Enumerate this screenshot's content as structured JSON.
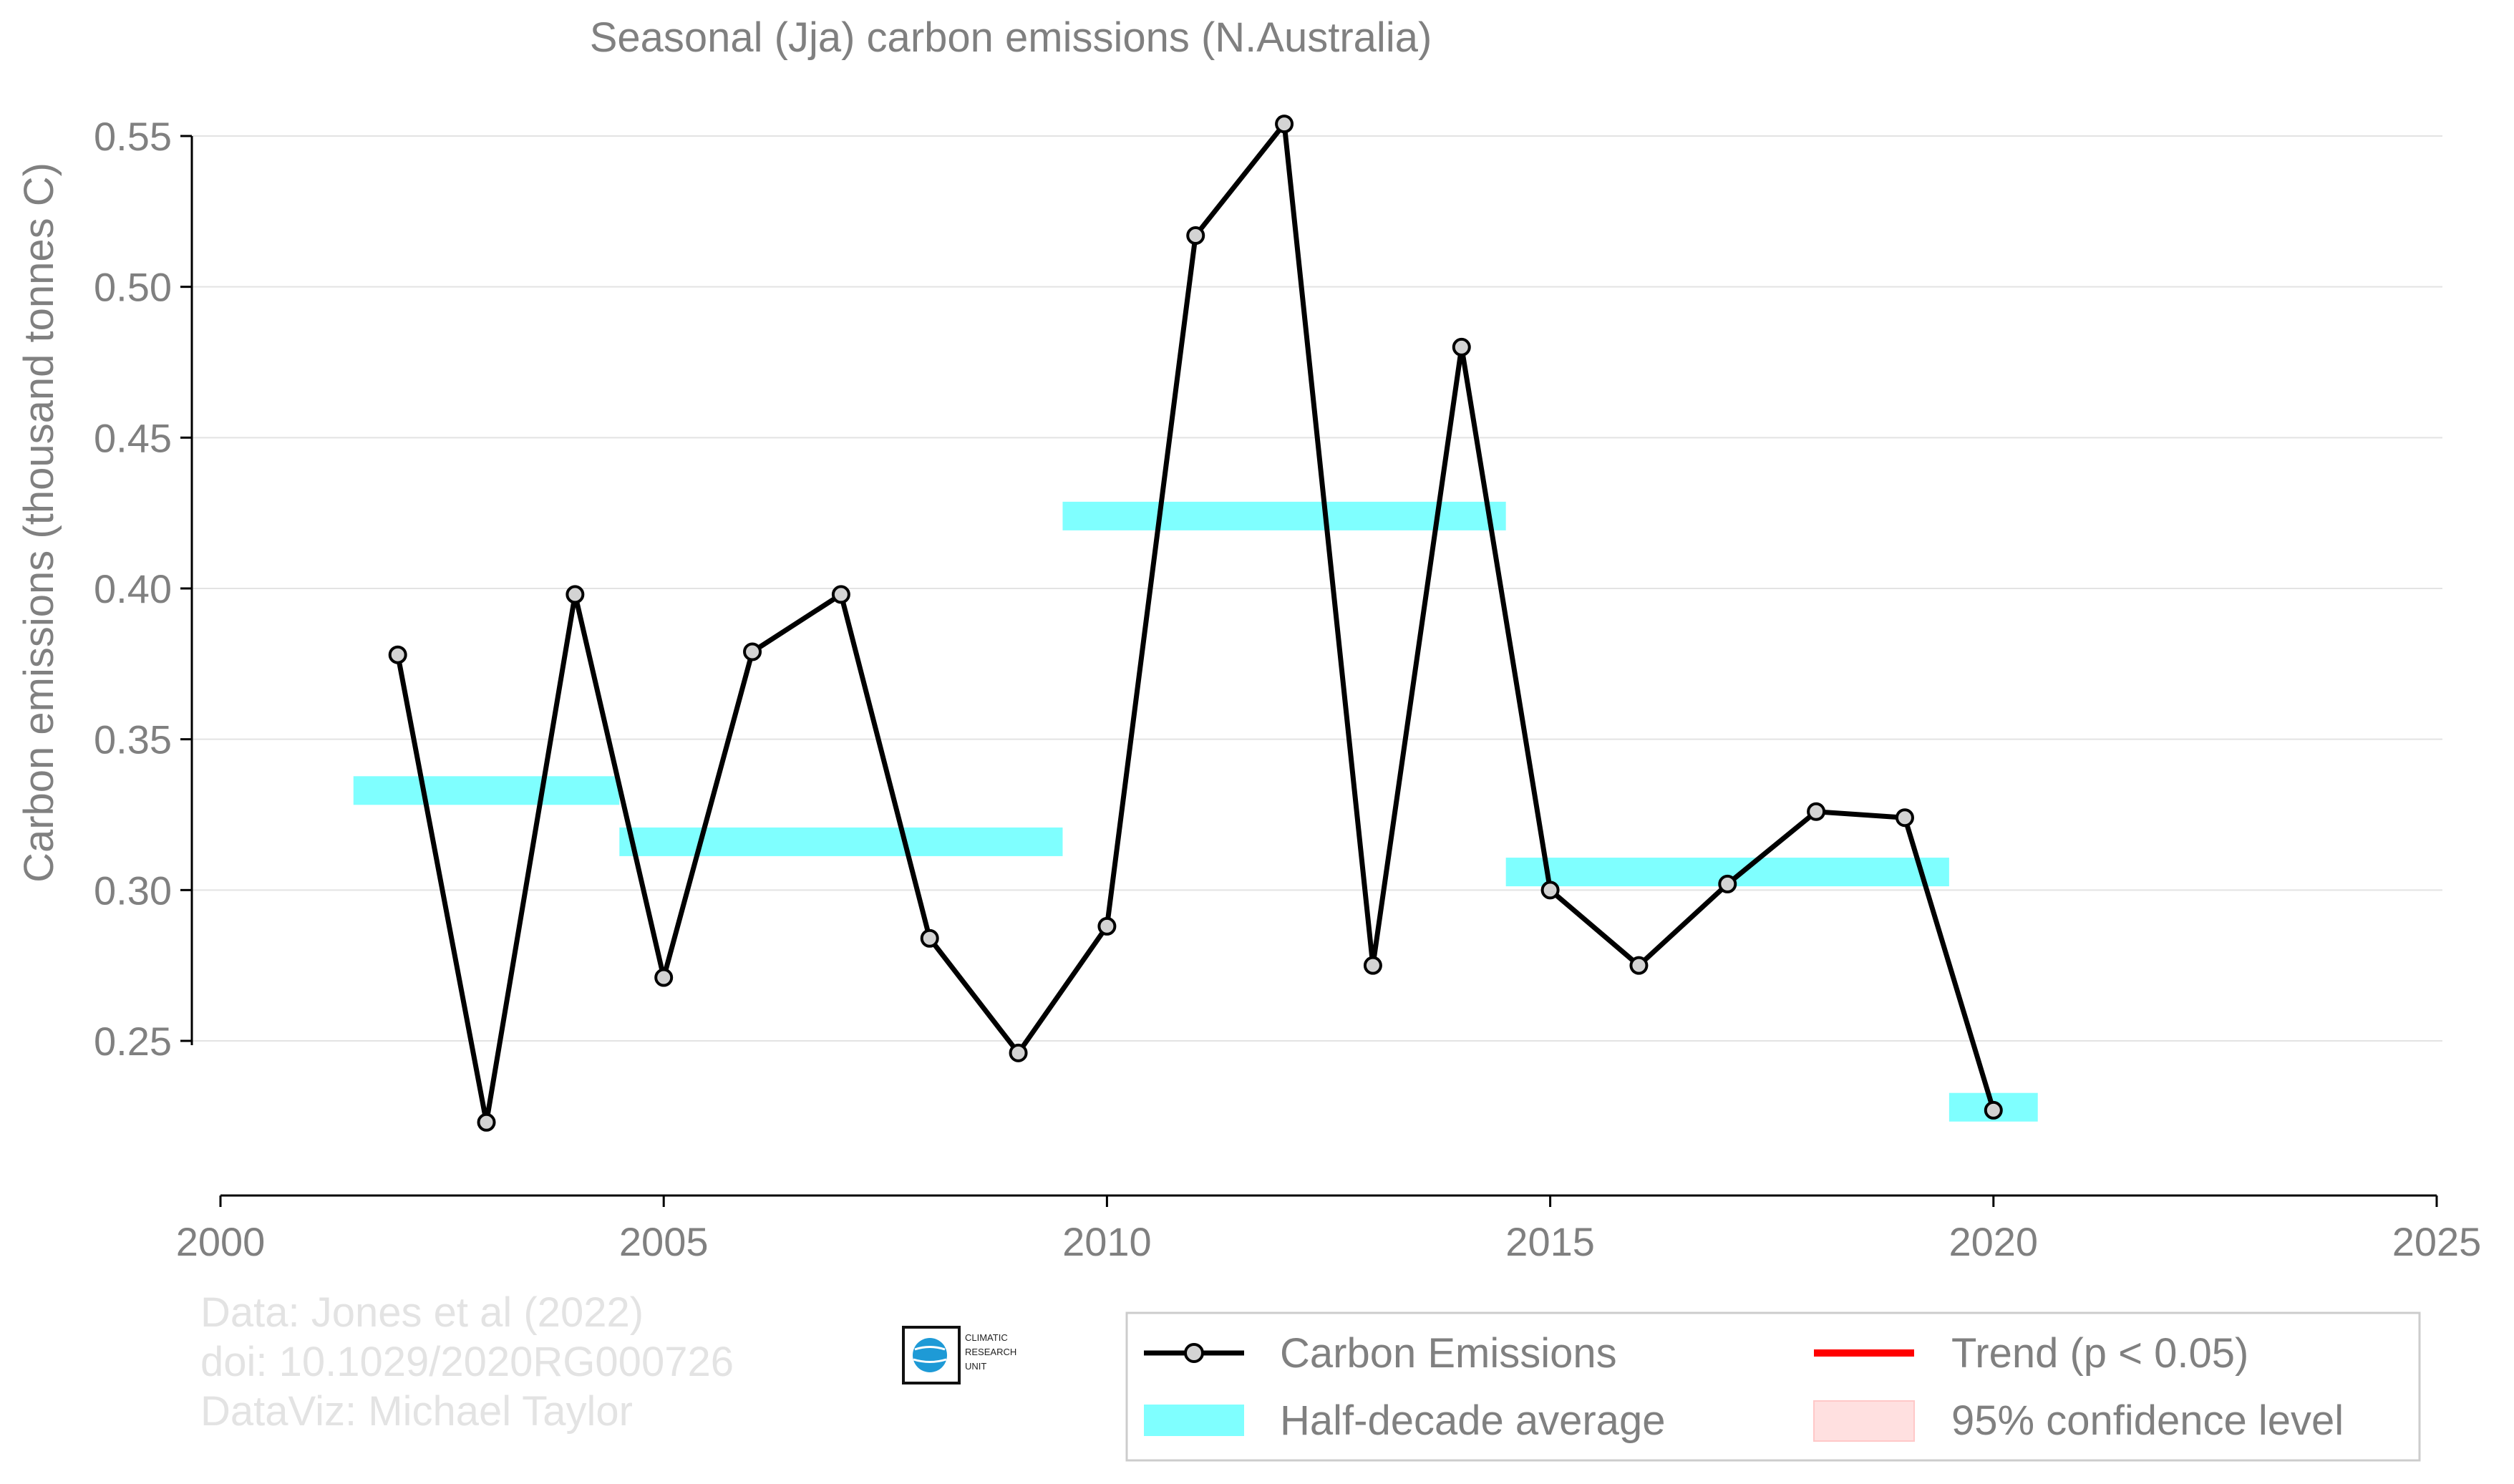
{
  "chart_data": {
    "type": "line",
    "title": "Seasonal (Jja) carbon emissions (N.Australia)",
    "xlabel": "",
    "ylabel": "Carbon emissions (thousand tonnes C)",
    "xlim": [
      2000,
      2025
    ],
    "ylim": [
      0.195,
      0.555
    ],
    "x_ticks": [
      2000,
      2005,
      2010,
      2015,
      2020,
      2025
    ],
    "x_tick_labels": [
      "2000",
      "2005",
      "2010",
      "2015",
      "2020",
      "2025"
    ],
    "y_ticks": [
      0.25,
      0.3,
      0.35,
      0.4,
      0.45,
      0.5,
      0.55
    ],
    "y_tick_labels": [
      "0.25",
      "0.30",
      "0.35",
      "0.40",
      "0.45",
      "0.50",
      "0.55"
    ],
    "grid": "horizontal",
    "legend_position": "bottom-right",
    "series": [
      {
        "name": "Carbon Emissions",
        "color": "#000000",
        "marker_fill": "#d3d3d3",
        "x": [
          2002,
          2003,
          2004,
          2005,
          2006,
          2007,
          2008,
          2009,
          2010,
          2011,
          2012,
          2013,
          2014,
          2015,
          2016,
          2017,
          2018,
          2019,
          2020
        ],
        "y": [
          0.378,
          0.223,
          0.398,
          0.271,
          0.379,
          0.398,
          0.284,
          0.246,
          0.288,
          0.517,
          0.554,
          0.275,
          0.48,
          0.3,
          0.275,
          0.302,
          0.326,
          0.324,
          0.227
        ]
      }
    ],
    "half_decade_average": {
      "name": "Half-decade average",
      "color": "#7fffff",
      "segments": [
        {
          "x_start": 2001.5,
          "x_end": 2004.5,
          "y": 0.333
        },
        {
          "x_start": 2004.5,
          "x_end": 2009.5,
          "y": 0.316
        },
        {
          "x_start": 2009.5,
          "x_end": 2014.5,
          "y": 0.424
        },
        {
          "x_start": 2014.5,
          "x_end": 2019.5,
          "y": 0.306
        },
        {
          "x_start": 2019.5,
          "x_end": 2020.5,
          "y": 0.228
        }
      ]
    },
    "legend": [
      {
        "label": "Carbon Emissions",
        "kind": "line-marker",
        "color": "#000000"
      },
      {
        "label": "Trend (p < 0.05)",
        "kind": "line",
        "color": "#ff0000"
      },
      {
        "label": "Half-decade average",
        "kind": "band",
        "color": "#7fffff"
      },
      {
        "label": "95% confidence level",
        "kind": "patch",
        "color": "#ffe0e0"
      }
    ],
    "credits": [
      "Data: Jones et al (2022)",
      "doi: 10.1029/2020RG000726",
      "DataViz: Michael Taylor"
    ],
    "logo_lines": [
      "CLIMATIC",
      "RESEARCH",
      "UNIT"
    ]
  }
}
